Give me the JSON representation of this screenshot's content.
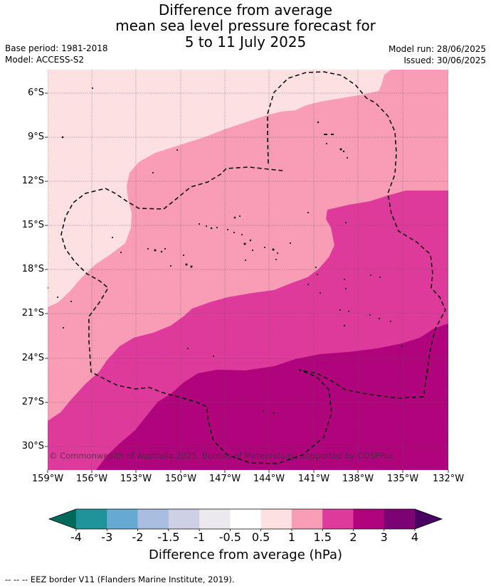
{
  "title": {
    "line1": "Difference from average",
    "line2": "mean sea level pressure forecast for",
    "line3": "5 to 11 July 2025"
  },
  "meta": {
    "base_period": "Base period: 1981-2018",
    "model": "Model: ACCESS-S2",
    "model_run": "Model run: 28/06/2025",
    "issued": "Issued: 30/06/2025"
  },
  "map": {
    "lat_labels": [
      "6°S",
      "9°S",
      "12°S",
      "15°S",
      "18°S",
      "21°S",
      "24°S",
      "27°S",
      "30°S"
    ],
    "lon_labels": [
      "159°W",
      "156°W",
      "153°W",
      "150°W",
      "147°W",
      "144°W",
      "141°W",
      "138°W",
      "135°W",
      "132°W"
    ],
    "copyright": "© Commonwealth of Australia 2025, Bureau of Meteorology; supported by COSPPac"
  },
  "colorbar": {
    "title": "Difference from average (hPa)",
    "tick_labels": [
      "-4",
      "-3",
      "-2",
      "-1.5",
      "-1",
      "-0.5",
      "0.5",
      "1",
      "1.5",
      "2",
      "3",
      "4"
    ],
    "colors": {
      "below_-4": "#00695c",
      "-4_-3": "#1e9399",
      "-3_-2": "#66aad2",
      "-2_-1.5": "#a8bde0",
      "-1.5_-1": "#ced1e6",
      "-1_-0.5": "#ebe8ee",
      "-0.5_0.5": "#ffffff",
      "0.5_1": "#fde0e1",
      "1_1.5": "#f99db6",
      "1.5_2": "#de3a9b",
      "2_3": "#b0047c",
      "3_4": "#7d0374",
      "above_4": "#4a0062"
    }
  },
  "footer": "--  --  -- EEZ border V11 (Flanders Marine Institute, 2019)."
}
